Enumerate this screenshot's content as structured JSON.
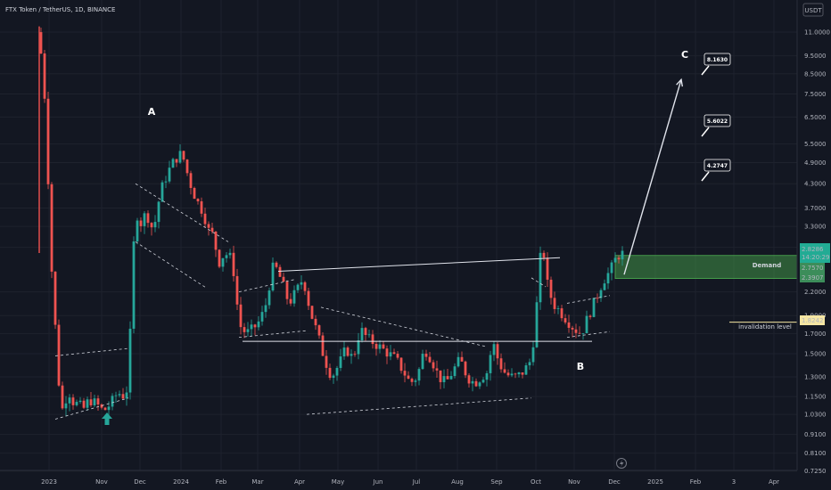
{
  "title": "FTX Token / TetherUS, 1D, BINANCE",
  "currency": "USDT",
  "chart_data": {
    "type": "candlestick",
    "y_scale": "log",
    "ylim": [
      0.72,
      11.5
    ],
    "y_ticks": [
      "11.0000",
      "9.5000",
      "8.5000",
      "7.5000",
      "6.5000",
      "5.5000",
      "4.9000",
      "4.3000",
      "3.7000",
      "3.3000",
      "2.9000",
      "2.2000",
      "1.9000",
      "1.7000",
      "1.5000",
      "1.3000",
      "1.1500",
      "1.0300",
      "0.9100",
      "0.8100",
      "0.7250"
    ],
    "x_ticks": [
      "2023",
      "Nov",
      "Dec",
      "2024",
      "Feb",
      "Mar",
      "Apr",
      "May",
      "Jun",
      "Jul",
      "Aug",
      "Sep",
      "Oct",
      "Nov",
      "Dec",
      "2025",
      "Feb",
      "3",
      "Apr"
    ],
    "last_price": "2.8286",
    "countdown": "14:20:29",
    "demand_zone": {
      "label": "Demand",
      "top": "2.7570",
      "bottom": "2.3907"
    },
    "invalidation": {
      "label": "invalidation level",
      "value": "1.8242"
    },
    "waves": [
      "A",
      "B",
      "C"
    ],
    "targets": [
      "4.2747",
      "5.6022",
      "8.1630"
    ],
    "close_path": [
      [
        0,
        11.0
      ],
      [
        2,
        6.5
      ],
      [
        3,
        3.0
      ],
      [
        4,
        2.1
      ],
      [
        5,
        1.5
      ],
      [
        6,
        1.05
      ],
      [
        7,
        1.08
      ],
      [
        8,
        1.2
      ],
      [
        9,
        1.15
      ],
      [
        10,
        1.08
      ],
      [
        11,
        1.12
      ],
      [
        12,
        1.05
      ],
      [
        14,
        1.13
      ],
      [
        16,
        1.1
      ],
      [
        18,
        1.05
      ],
      [
        20,
        1.1
      ],
      [
        22,
        1.18
      ],
      [
        24,
        1.15
      ],
      [
        25,
        1.25
      ],
      [
        26,
        2.3
      ],
      [
        27,
        3.8
      ],
      [
        28,
        3.3
      ],
      [
        30,
        3.6
      ],
      [
        32,
        3.2
      ],
      [
        34,
        4.1
      ],
      [
        36,
        4.6
      ],
      [
        38,
        5.0
      ],
      [
        40,
        5.2
      ],
      [
        41,
        4.8
      ],
      [
        42,
        4.4
      ],
      [
        44,
        3.9
      ],
      [
        46,
        3.6
      ],
      [
        48,
        3.1
      ],
      [
        49,
        3.2
      ],
      [
        50,
        2.6
      ],
      [
        52,
        2.8
      ],
      [
        54,
        2.7
      ],
      [
        55,
        2.3
      ],
      [
        56,
        1.8
      ],
      [
        58,
        1.7
      ],
      [
        60,
        1.75
      ],
      [
        62,
        1.85
      ],
      [
        64,
        2.1
      ],
      [
        65,
        2.5
      ],
      [
        66,
        2.6
      ],
      [
        68,
        2.35
      ],
      [
        70,
        2.05
      ],
      [
        72,
        2.2
      ],
      [
        74,
        2.4
      ],
      [
        76,
        1.95
      ],
      [
        78,
        1.7
      ],
      [
        80,
        1.45
      ],
      [
        82,
        1.3
      ],
      [
        84,
        1.4
      ],
      [
        86,
        1.55
      ],
      [
        88,
        1.45
      ],
      [
        90,
        1.75
      ],
      [
        92,
        1.65
      ],
      [
        94,
        1.6
      ],
      [
        96,
        1.55
      ],
      [
        98,
        1.5
      ],
      [
        100,
        1.45
      ],
      [
        102,
        1.35
      ],
      [
        104,
        1.25
      ],
      [
        106,
        1.3
      ],
      [
        108,
        1.55
      ],
      [
        110,
        1.45
      ],
      [
        112,
        1.3
      ],
      [
        114,
        1.25
      ],
      [
        116,
        1.35
      ],
      [
        118,
        1.45
      ],
      [
        120,
        1.3
      ],
      [
        122,
        1.25
      ],
      [
        124,
        1.3
      ],
      [
        126,
        1.35
      ],
      [
        127,
        1.65
      ],
      [
        128,
        1.5
      ],
      [
        130,
        1.35
      ],
      [
        132,
        1.3
      ],
      [
        134,
        1.3
      ],
      [
        136,
        1.35
      ],
      [
        138,
        1.45
      ],
      [
        139,
        1.8
      ],
      [
        140,
        2.3
      ],
      [
        141,
        3.2
      ],
      [
        142,
        2.4
      ],
      [
        144,
        2.05
      ],
      [
        146,
        1.95
      ],
      [
        148,
        1.85
      ],
      [
        150,
        1.75
      ],
      [
        152,
        1.7
      ],
      [
        154,
        1.9
      ],
      [
        156,
        2.1
      ],
      [
        158,
        2.35
      ],
      [
        160,
        2.5
      ],
      [
        162,
        2.75
      ],
      [
        164,
        2.8
      ]
    ],
    "wedge_lines": [
      [
        [
          4.5,
          1.0
        ],
        [
          25,
          1.14
        ]
      ],
      [
        [
          4.5,
          1.48
        ],
        [
          25,
          1.55
        ]
      ],
      [
        [
          75,
          1.03
        ],
        [
          138,
          1.14
        ]
      ],
      [
        [
          79,
          2.0
        ],
        [
          125,
          1.57
        ]
      ],
      [
        [
          27,
          4.3
        ],
        [
          53,
          3.0
        ]
      ],
      [
        [
          27,
          3.0
        ],
        [
          47,
          2.25
        ]
      ],
      [
        [
          56,
          1.66
        ],
        [
          75,
          1.73
        ]
      ],
      [
        [
          56,
          2.2
        ],
        [
          72,
          2.38
        ]
      ],
      [
        [
          138,
          2.4
        ],
        [
          142,
          2.27
        ]
      ],
      [
        [
          148,
          1.66
        ],
        [
          160,
          1.72
        ]
      ],
      [
        [
          148,
          2.05
        ],
        [
          160,
          2.15
        ]
      ]
    ],
    "solid_lines": [
      [
        [
          57,
          1.62
        ],
        [
          155,
          1.62
        ]
      ],
      [
        [
          67,
          2.5
        ],
        [
          146,
          2.72
        ]
      ],
      [
        [
          164,
          2.45
        ],
        [
          180,
          8.2
        ]
      ]
    ]
  }
}
